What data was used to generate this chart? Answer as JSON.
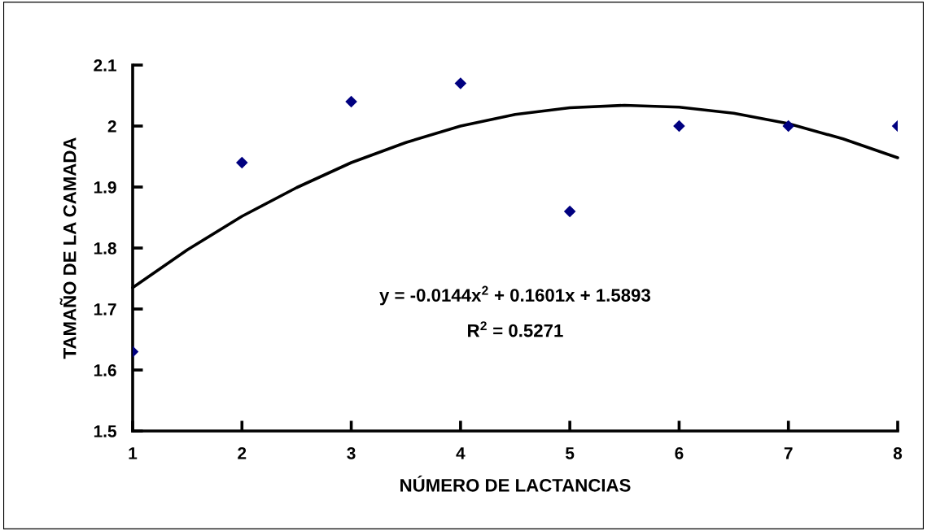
{
  "chart_data": {
    "type": "scatter",
    "xlabel": "NÚMERO DE LACTANCIAS",
    "ylabel": "TAMAÑO DE LA CAMADA",
    "x": [
      1,
      2,
      3,
      4,
      5,
      6,
      7,
      8
    ],
    "series": [
      {
        "type": "scatter",
        "color": "#000080",
        "marker": "diamond",
        "values": [
          1.63,
          1.94,
          2.04,
          2.07,
          1.86,
          2.0,
          2.0,
          2.0
        ]
      },
      {
        "type": "line",
        "color": "#000000",
        "line_style": "solid",
        "marker": "none",
        "x": [
          1,
          1.5,
          2,
          2.5,
          3,
          3.5,
          4,
          4.5,
          5,
          5.5,
          6,
          6.5,
          7,
          7.5,
          8
        ],
        "values": [
          1.735,
          1.797,
          1.852,
          1.899,
          1.94,
          1.973,
          2.0,
          2.019,
          2.03,
          2.034,
          2.031,
          2.021,
          2.004,
          1.979,
          1.948
        ]
      }
    ],
    "annotations": [
      "y = -0.0144x$^{2}$ + 0.1601x + 1.5893",
      "R$^{2}$ = 0.5271"
    ],
    "xlim": [
      1,
      8
    ],
    "xticks": [
      1,
      2,
      3,
      4,
      5,
      6,
      7,
      8
    ],
    "ylim": [
      1.5,
      2.1
    ],
    "yticks": [
      1.5,
      1.6,
      1.7,
      1.8,
      1.9,
      2,
      2.1
    ],
    "grid": false,
    "legend": false
  }
}
